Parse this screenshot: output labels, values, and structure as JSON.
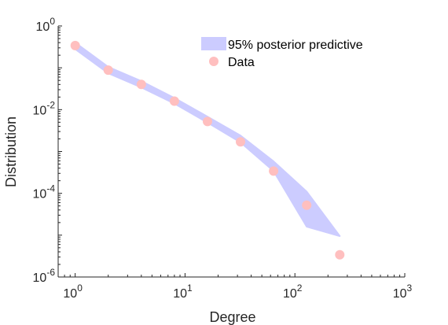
{
  "chart_data": {
    "type": "scatter",
    "xlabel": "Degree",
    "ylabel": "Distribution",
    "xscale": "log",
    "yscale": "log",
    "xlim": [
      0.7,
      1000
    ],
    "ylim": [
      1e-06,
      1
    ],
    "x_ticks": [
      {
        "value": 1,
        "base": "10",
        "exp": "0"
      },
      {
        "value": 10,
        "base": "10",
        "exp": "1"
      },
      {
        "value": 100,
        "base": "10",
        "exp": "2"
      },
      {
        "value": 1000,
        "base": "10",
        "exp": "3"
      }
    ],
    "y_ticks": [
      {
        "value": 1e-06,
        "base": "10",
        "exp": "-6"
      },
      {
        "value": 0.0001,
        "base": "10",
        "exp": "-4"
      },
      {
        "value": 0.01,
        "base": "10",
        "exp": "-2"
      },
      {
        "value": 1,
        "base": "10",
        "exp": "0"
      }
    ],
    "grid": false,
    "legend_position": "top-right",
    "colors": {
      "band": "#ccccff",
      "points": "#ffbfbf",
      "axis": "#262626"
    },
    "series": [
      {
        "name": "95% posterior predictive",
        "kind": "band",
        "x": [
          1,
          2,
          4,
          8,
          16,
          32,
          64,
          128,
          128,
          256
        ],
        "upper": [
          0.4,
          0.105,
          0.048,
          0.019,
          0.0068,
          0.0024,
          0.00058,
          0.00011,
          0.00011,
          9.5e-06
        ],
        "lower": [
          0.28,
          0.074,
          0.034,
          0.014,
          0.0049,
          0.00165,
          0.00034,
          1.6e-05,
          1.6e-05,
          9.5e-06
        ]
      },
      {
        "name": "Data",
        "kind": "points",
        "x": [
          1,
          2,
          4,
          8,
          16,
          32,
          64,
          128,
          256
        ],
        "y": [
          0.34,
          0.088,
          0.04,
          0.016,
          0.0052,
          0.0017,
          0.00034,
          5.2e-05,
          3.4e-06
        ]
      }
    ]
  }
}
